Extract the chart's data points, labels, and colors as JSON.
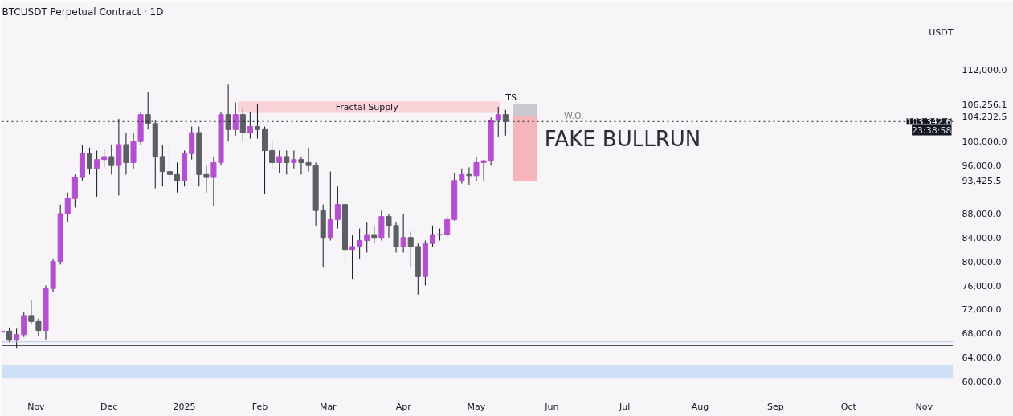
{
  "chart_data": {
    "type": "candlestick",
    "title": "BTCUSDT Perpetual Contract · 1D",
    "ylabel": "USDT",
    "x": [
      "2024-10-18",
      "2024-10-21",
      "2024-10-24",
      "2024-10-27",
      "2024-10-30",
      "2024-11-02",
      "2024-11-05",
      "2024-11-08",
      "2024-11-11",
      "2024-11-14",
      "2024-11-17",
      "2024-11-20",
      "2024-11-23",
      "2024-11-26",
      "2024-11-29",
      "2024-12-02",
      "2024-12-05",
      "2024-12-08",
      "2024-12-11",
      "2024-12-14",
      "2024-12-17",
      "2024-12-20",
      "2024-12-23",
      "2024-12-26",
      "2024-12-29",
      "2025-01-01",
      "2025-01-04",
      "2025-01-07",
      "2025-01-10",
      "2025-01-13",
      "2025-01-16",
      "2025-01-19",
      "2025-01-22",
      "2025-01-25",
      "2025-01-28",
      "2025-01-31",
      "2025-02-03",
      "2025-02-06",
      "2025-02-09",
      "2025-02-12",
      "2025-02-15",
      "2025-02-18",
      "2025-02-21",
      "2025-02-24",
      "2025-02-27",
      "2025-03-02",
      "2025-03-05",
      "2025-03-08",
      "2025-03-11",
      "2025-03-14",
      "2025-03-17",
      "2025-03-20",
      "2025-03-23",
      "2025-03-26",
      "2025-03-29",
      "2025-04-01",
      "2025-04-04",
      "2025-04-07",
      "2025-04-10",
      "2025-04-13",
      "2025-04-16",
      "2025-04-19",
      "2025-04-22",
      "2025-04-25",
      "2025-04-28",
      "2025-05-01",
      "2025-05-04",
      "2025-05-07",
      "2025-05-10",
      "2025-05-13"
    ],
    "ohlc": [
      [
        68200,
        69200,
        67500,
        68400
      ],
      [
        68400,
        69000,
        66500,
        67000
      ],
      [
        67000,
        68800,
        65600,
        67800
      ],
      [
        67800,
        71500,
        67400,
        71000
      ],
      [
        71000,
        73600,
        69500,
        70000
      ],
      [
        70000,
        70500,
        67600,
        68500
      ],
      [
        68500,
        76000,
        67000,
        75500
      ],
      [
        75500,
        80500,
        75000,
        80000
      ],
      [
        80000,
        89500,
        79500,
        88000
      ],
      [
        88000,
        91500,
        86500,
        90500
      ],
      [
        90500,
        94500,
        89000,
        94000
      ],
      [
        94000,
        99500,
        93500,
        98000
      ],
      [
        98000,
        99000,
        94500,
        95500
      ],
      [
        95500,
        98500,
        90800,
        97000
      ],
      [
        97000,
        98800,
        95700,
        97500
      ],
      [
        97500,
        99500,
        94500,
        96000
      ],
      [
        96000,
        103800,
        91000,
        99500
      ],
      [
        99500,
        101500,
        94500,
        96500
      ],
      [
        96500,
        101500,
        95500,
        100000
      ],
      [
        100000,
        105000,
        99500,
        104500
      ],
      [
        104500,
        108300,
        102000,
        103000
      ],
      [
        103000,
        103500,
        92200,
        97500
      ],
      [
        97500,
        99500,
        92500,
        95000
      ],
      [
        95000,
        99800,
        93500,
        94500
      ],
      [
        94500,
        96500,
        91500,
        93500
      ],
      [
        93500,
        98500,
        92500,
        98000
      ],
      [
        98000,
        102500,
        97000,
        101500
      ],
      [
        101500,
        102500,
        92500,
        94500
      ],
      [
        94500,
        96000,
        91500,
        94000
      ],
      [
        94000,
        97500,
        89200,
        96500
      ],
      [
        96500,
        105000,
        96000,
        104500
      ],
      [
        104500,
        109500,
        100000,
        102000
      ],
      [
        102000,
        106500,
        101000,
        104500
      ],
      [
        104500,
        105500,
        100000,
        101500
      ],
      [
        101500,
        105000,
        100500,
        102500
      ],
      [
        102500,
        106200,
        100500,
        102000
      ],
      [
        102000,
        102500,
        91200,
        98500
      ],
      [
        98500,
        100000,
        95500,
        96500
      ],
      [
        96500,
        98500,
        94800,
        97500
      ],
      [
        97500,
        98500,
        94500,
        96500
      ],
      [
        96500,
        98500,
        95500,
        97000
      ],
      [
        97000,
        97500,
        94500,
        96500
      ],
      [
        96500,
        99000,
        95000,
        96000
      ],
      [
        96000,
        96500,
        86000,
        88500
      ],
      [
        88500,
        89500,
        79000,
        84000
      ],
      [
        84000,
        95000,
        83500,
        87000
      ],
      [
        87000,
        92500,
        85500,
        89500
      ],
      [
        89500,
        90000,
        80000,
        82000
      ],
      [
        82000,
        84500,
        77000,
        82500
      ],
      [
        82500,
        85500,
        80500,
        83500
      ],
      [
        83500,
        86500,
        81500,
        84500
      ],
      [
        84500,
        86000,
        83000,
        84000
      ],
      [
        84000,
        88500,
        83500,
        87500
      ],
      [
        87500,
        88000,
        84000,
        86000
      ],
      [
        86000,
        86500,
        81500,
        82500
      ],
      [
        82500,
        88000,
        81500,
        84000
      ],
      [
        84000,
        85000,
        79000,
        82500
      ],
      [
        82500,
        83000,
        74500,
        77500
      ],
      [
        77500,
        83500,
        76000,
        83000
      ],
      [
        83000,
        86000,
        82500,
        84500
      ],
      [
        84500,
        85500,
        83500,
        84500
      ],
      [
        84500,
        87500,
        84000,
        87000
      ],
      [
        87000,
        94800,
        86800,
        93500
      ],
      [
        93500,
        95500,
        93000,
        94500
      ],
      [
        94500,
        95700,
        92800,
        94300
      ],
      [
        94300,
        97500,
        93400,
        96500
      ],
      [
        96500,
        97000,
        93500,
        96800
      ],
      [
        96800,
        104000,
        96000,
        103500
      ],
      [
        103500,
        105800,
        100800,
        104500
      ],
      [
        104500,
        105300,
        101000,
        103342.6
      ]
    ],
    "colors": [
      "#b44fd1",
      "#5d5d66",
      "#b44fd1",
      "#b44fd1",
      "#5d5d66",
      "#5d5d66",
      "#b44fd1",
      "#b44fd1",
      "#b44fd1",
      "#b44fd1",
      "#b44fd1",
      "#b44fd1",
      "#5d5d66",
      "#b44fd1",
      "#b44fd1",
      "#5d5d66",
      "#b44fd1",
      "#5d5d66",
      "#b44fd1",
      "#b44fd1",
      "#5d5d66",
      "#5d5d66",
      "#5d5d66",
      "#5d5d66",
      "#5d5d66",
      "#b44fd1",
      "#b44fd1",
      "#5d5d66",
      "#5d5d66",
      "#b44fd1",
      "#b44fd1",
      "#5d5d66",
      "#b44fd1",
      "#5d5d66",
      "#b44fd1",
      "#5d5d66",
      "#5d5d66",
      "#5d5d66",
      "#b44fd1",
      "#5d5d66",
      "#b44fd1",
      "#5d5d66",
      "#5d5d66",
      "#5d5d66",
      "#5d5d66",
      "#b44fd1",
      "#b44fd1",
      "#5d5d66",
      "#b44fd1",
      "#b44fd1",
      "#b44fd1",
      "#5d5d66",
      "#b44fd1",
      "#5d5d66",
      "#5d5d66",
      "#b44fd1",
      "#5d5d66",
      "#5d5d66",
      "#b44fd1",
      "#b44fd1",
      "#b44fd1",
      "#b44fd1",
      "#b44fd1",
      "#b44fd1",
      "#5d5d66",
      "#b44fd1",
      "#b44fd1",
      "#b44fd1",
      "#b44fd1",
      "#5d5d66"
    ],
    "xlim": [
      "2024-10-18",
      "2025-11-13"
    ],
    "xticks": [
      {
        "value": "2024-11-01",
        "label": "Nov"
      },
      {
        "value": "2024-12-01",
        "label": "Dec"
      },
      {
        "value": "2025-01-01",
        "label": "2025"
      },
      {
        "value": "2025-02-01",
        "label": "Feb"
      },
      {
        "value": "2025-03-01",
        "label": "Mar"
      },
      {
        "value": "2025-04-01",
        "label": "Apr"
      },
      {
        "value": "2025-05-01",
        "label": "May"
      },
      {
        "value": "2025-06-01",
        "label": "Jun"
      },
      {
        "value": "2025-07-01",
        "label": "Jul"
      },
      {
        "value": "2025-08-01",
        "label": "Aug"
      },
      {
        "value": "2025-09-01",
        "label": "Sep"
      },
      {
        "value": "2025-10-01",
        "label": "Oct"
      },
      {
        "value": "2025-11-01",
        "label": "Nov"
      }
    ],
    "ylim": [
      58200,
      116700
    ],
    "yticks": [
      {
        "value": 60000,
        "label": "60,000.0"
      },
      {
        "value": 64000,
        "label": "64,000.0"
      },
      {
        "value": 68000,
        "label": "68,000.0"
      },
      {
        "value": 72000,
        "label": "72,000.0"
      },
      {
        "value": 76000,
        "label": "76,000.0"
      },
      {
        "value": 80000,
        "label": "80,000.0"
      },
      {
        "value": 84000,
        "label": "84,000.0"
      },
      {
        "value": 88000,
        "label": "88,000.0"
      },
      {
        "value": 93425.5,
        "label": "93,425.5"
      },
      {
        "value": 96000,
        "label": "96,000.0"
      },
      {
        "value": 100000,
        "label": "100,000.0"
      },
      {
        "value": 104232.5,
        "label": "104,232.5"
      },
      {
        "value": 106256.1,
        "label": "106,256.1"
      },
      {
        "value": 112000,
        "label": "112,000.0"
      }
    ],
    "series": [
      {
        "type": "bar",
        "x": [
          "2025-05-21",
          "2025-05-21"
        ],
        "base": [
          93425.5,
          104232.5
        ],
        "values": [
          10807,
          2023.6
        ],
        "colors": [
          "#f5b5ba",
          "#c9cad0"
        ]
      }
    ],
    "ref_lines": [
      {
        "axis": "y",
        "value": 103342.6,
        "label": "103,342.6",
        "color": "#131722",
        "line_style": "dotted"
      },
      {
        "axis": "y",
        "value": 66000,
        "label": null,
        "color": "#131722",
        "line_style": "solid"
      },
      {
        "axis": "y",
        "value": 66600,
        "label": null,
        "color": "#b2c7ec",
        "line_style": "solid"
      }
    ],
    "bands": [
      {
        "axis": "y",
        "from": 60500,
        "to": 62700,
        "label": null,
        "color": "#cfdff5"
      },
      {
        "axis": "y",
        "from": 104800,
        "to": 106700,
        "label": "Fractal Supply",
        "color": "#f8d3d7"
      }
    ],
    "annotations": [
      "23:38:58",
      "TS",
      "W.O.",
      "FAKE BULLRUN"
    ]
  }
}
